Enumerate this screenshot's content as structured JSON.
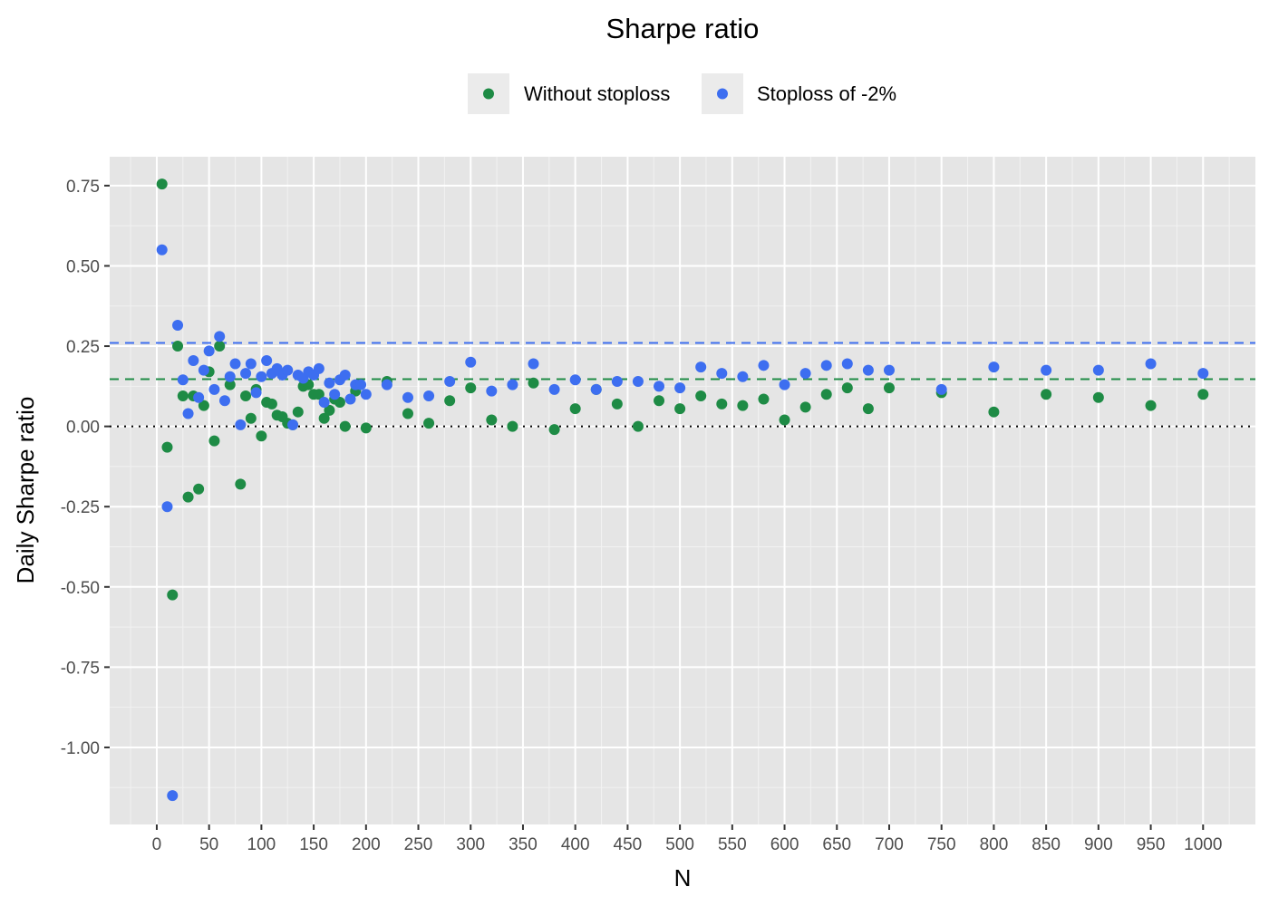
{
  "chart_data": {
    "type": "scatter",
    "title": "Sharpe ratio",
    "xlabel": "N",
    "ylabel": "Daily Sharpe ratio",
    "xlim": [
      -45,
      1050
    ],
    "ylim": [
      -1.24,
      0.84
    ],
    "x_ticks": [
      0,
      50,
      100,
      150,
      200,
      250,
      300,
      350,
      400,
      450,
      500,
      550,
      600,
      650,
      700,
      750,
      800,
      850,
      900,
      950,
      1000
    ],
    "x_tick_labels": [
      "0",
      "50",
      "100",
      "150",
      "200",
      "250",
      "300",
      "350",
      "400",
      "450",
      "500",
      "550",
      "600",
      "650",
      "700",
      "750",
      "800",
      "850",
      "900",
      "950",
      "1000"
    ],
    "y_ticks": [
      -1.0,
      -0.75,
      -0.5,
      -0.25,
      0.0,
      0.25,
      0.5,
      0.75
    ],
    "y_tick_labels": [
      "-1.00",
      "-0.75",
      "-0.50",
      "-0.25",
      "0.00",
      "0.25",
      "0.50",
      "0.75"
    ],
    "grid": true,
    "legend_position": "top",
    "reference_lines": [
      {
        "y": 0.0,
        "style": "dotted",
        "color": "#000000"
      },
      {
        "y": 0.147,
        "style": "dashed",
        "color": "#1e8b45"
      },
      {
        "y": 0.26,
        "style": "dashed",
        "color": "#3d6ef0"
      }
    ],
    "series": [
      {
        "name": "Without stoploss",
        "color": "#1e8b45",
        "x": [
          5,
          10,
          15,
          20,
          25,
          30,
          35,
          40,
          45,
          50,
          55,
          60,
          70,
          80,
          85,
          90,
          95,
          100,
          105,
          110,
          115,
          120,
          125,
          130,
          135,
          140,
          145,
          150,
          155,
          160,
          165,
          170,
          175,
          180,
          190,
          200,
          220,
          240,
          260,
          280,
          300,
          320,
          340,
          360,
          380,
          400,
          420,
          440,
          460,
          480,
          500,
          520,
          540,
          560,
          580,
          600,
          620,
          640,
          660,
          680,
          700,
          750,
          800,
          850,
          900,
          950,
          1000
        ],
        "y": [
          0.755,
          -0.065,
          -0.525,
          0.25,
          0.095,
          -0.22,
          0.095,
          -0.195,
          0.065,
          0.17,
          -0.045,
          0.25,
          0.13,
          -0.18,
          0.095,
          0.025,
          0.115,
          -0.03,
          0.075,
          0.07,
          0.035,
          0.03,
          0.01,
          0.005,
          0.045,
          0.125,
          0.13,
          0.1,
          0.1,
          0.025,
          0.05,
          0.085,
          0.075,
          0.0,
          0.11,
          -0.005,
          0.14,
          0.04,
          0.01,
          0.08,
          0.12,
          0.02,
          0.0,
          0.135,
          -0.01,
          0.055,
          0.115,
          0.07,
          0.0,
          0.08,
          0.055,
          0.095,
          0.07,
          0.065,
          0.085,
          0.02,
          0.06,
          0.1,
          0.12,
          0.055,
          0.12,
          0.105,
          0.045,
          0.1,
          0.09,
          0.065,
          0.1
        ]
      },
      {
        "name": "Stoploss of -2%",
        "color": "#3d6ef0",
        "x": [
          5,
          10,
          15,
          20,
          25,
          30,
          35,
          40,
          45,
          50,
          55,
          60,
          65,
          70,
          75,
          80,
          85,
          90,
          95,
          100,
          105,
          110,
          115,
          120,
          125,
          130,
          135,
          140,
          145,
          150,
          155,
          160,
          165,
          170,
          175,
          180,
          185,
          190,
          195,
          200,
          220,
          240,
          260,
          280,
          300,
          320,
          340,
          360,
          380,
          400,
          420,
          440,
          460,
          480,
          500,
          520,
          540,
          560,
          580,
          600,
          620,
          640,
          660,
          680,
          700,
          750,
          800,
          850,
          900,
          950,
          1000
        ],
        "y": [
          0.55,
          -0.25,
          -1.15,
          0.315,
          0.145,
          0.04,
          0.205,
          0.09,
          0.175,
          0.235,
          0.115,
          0.28,
          0.08,
          0.155,
          0.195,
          0.005,
          0.165,
          0.195,
          0.105,
          0.155,
          0.205,
          0.165,
          0.18,
          0.16,
          0.175,
          0.005,
          0.16,
          0.15,
          0.17,
          0.16,
          0.18,
          0.075,
          0.135,
          0.1,
          0.145,
          0.16,
          0.085,
          0.13,
          0.13,
          0.1,
          0.13,
          0.09,
          0.095,
          0.14,
          0.2,
          0.11,
          0.13,
          0.195,
          0.115,
          0.145,
          0.115,
          0.14,
          0.14,
          0.125,
          0.12,
          0.185,
          0.165,
          0.155,
          0.19,
          0.13,
          0.165,
          0.19,
          0.195,
          0.175,
          0.175,
          0.115,
          0.185,
          0.175,
          0.175,
          0.195,
          0.165
        ]
      }
    ]
  }
}
